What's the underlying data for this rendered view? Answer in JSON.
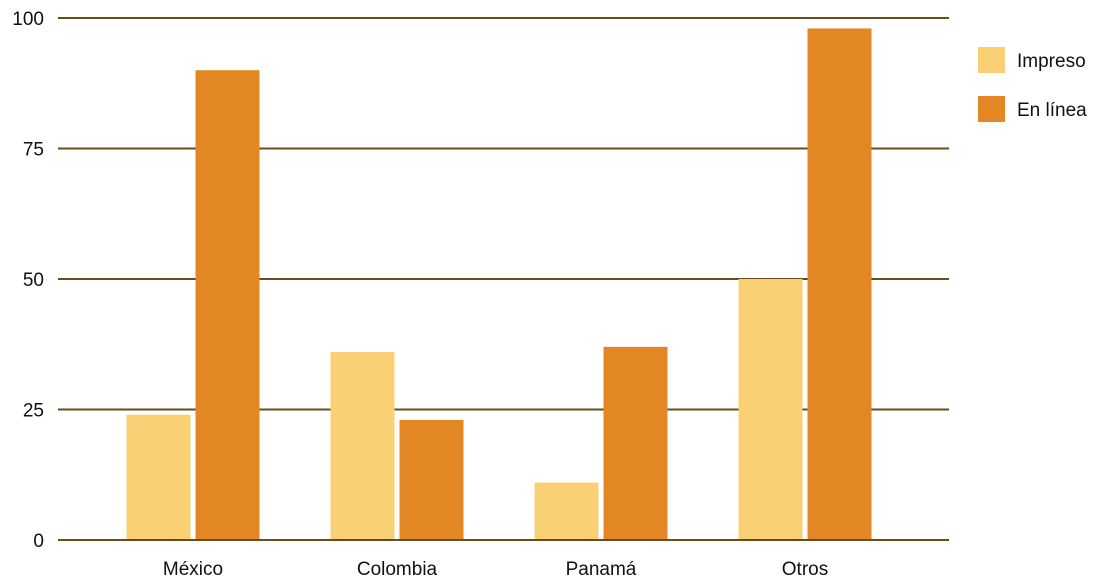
{
  "chart_data": {
    "type": "bar",
    "title": "",
    "xlabel": "",
    "ylabel": "",
    "categories": [
      "México",
      "Colombia",
      "Panamá",
      "Otros"
    ],
    "series": [
      {
        "name": "Impreso",
        "values": [
          24,
          36,
          11,
          50
        ],
        "color": "#f9d074"
      },
      {
        "name": "En línea",
        "values": [
          90,
          23,
          37,
          98
        ],
        "color": "#e38624"
      }
    ],
    "ylim": [
      0,
      100
    ],
    "yticks": [
      0,
      25,
      50,
      75,
      100
    ],
    "ytick_labels": [
      "0",
      "25",
      "50",
      "75",
      "100"
    ],
    "grid": true,
    "grid_color": "#6b4a1e",
    "legend_position": "top-right"
  }
}
